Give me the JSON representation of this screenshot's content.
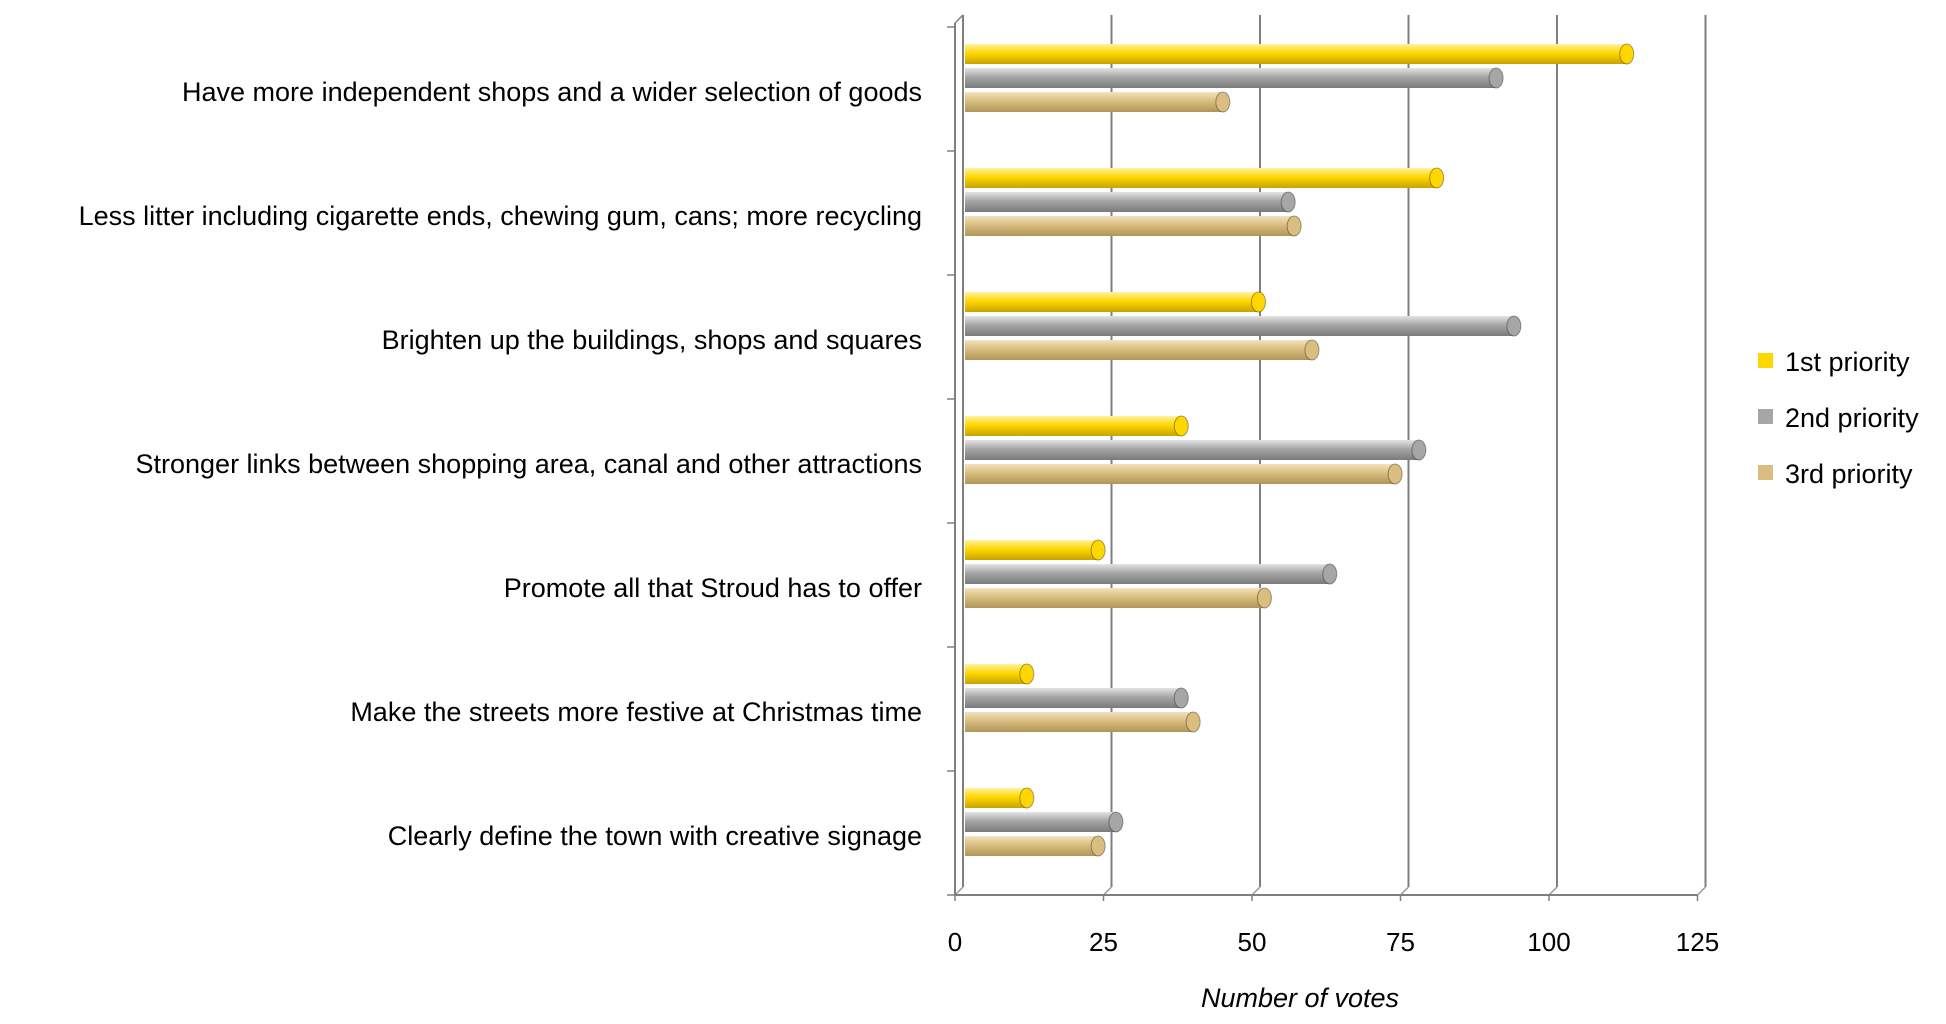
{
  "chart_data": {
    "type": "bar",
    "orientation": "horizontal",
    "categories": [
      "Have more independent shops and a wider selection of goods",
      "Less litter including cigarette ends, chewing gum, cans; more recycling",
      "Brighten up the buildings, shops and squares",
      "Stronger links between shopping area, canal and other attractions",
      "Promote all that Stroud has to offer",
      "Make the streets more festive at Christmas time",
      "Clearly define the town with creative signage"
    ],
    "series": [
      {
        "name": "1st priority",
        "color": "#FFD700",
        "values": [
          112,
          80,
          50,
          37,
          23,
          11,
          11
        ]
      },
      {
        "name": "2nd priority",
        "color": "#A6A6A6",
        "values": [
          90,
          55,
          93,
          77,
          62,
          37,
          26
        ]
      },
      {
        "name": "3rd priority",
        "color": "#D9BE7F",
        "values": [
          44,
          56,
          59,
          73,
          51,
          39,
          23
        ]
      }
    ],
    "xlabel": "Number of votes",
    "ylabel": "",
    "xlim": [
      0,
      125
    ],
    "xticks": [
      0,
      25,
      50,
      75,
      100,
      125
    ],
    "grid": true,
    "legend_position": "right"
  }
}
